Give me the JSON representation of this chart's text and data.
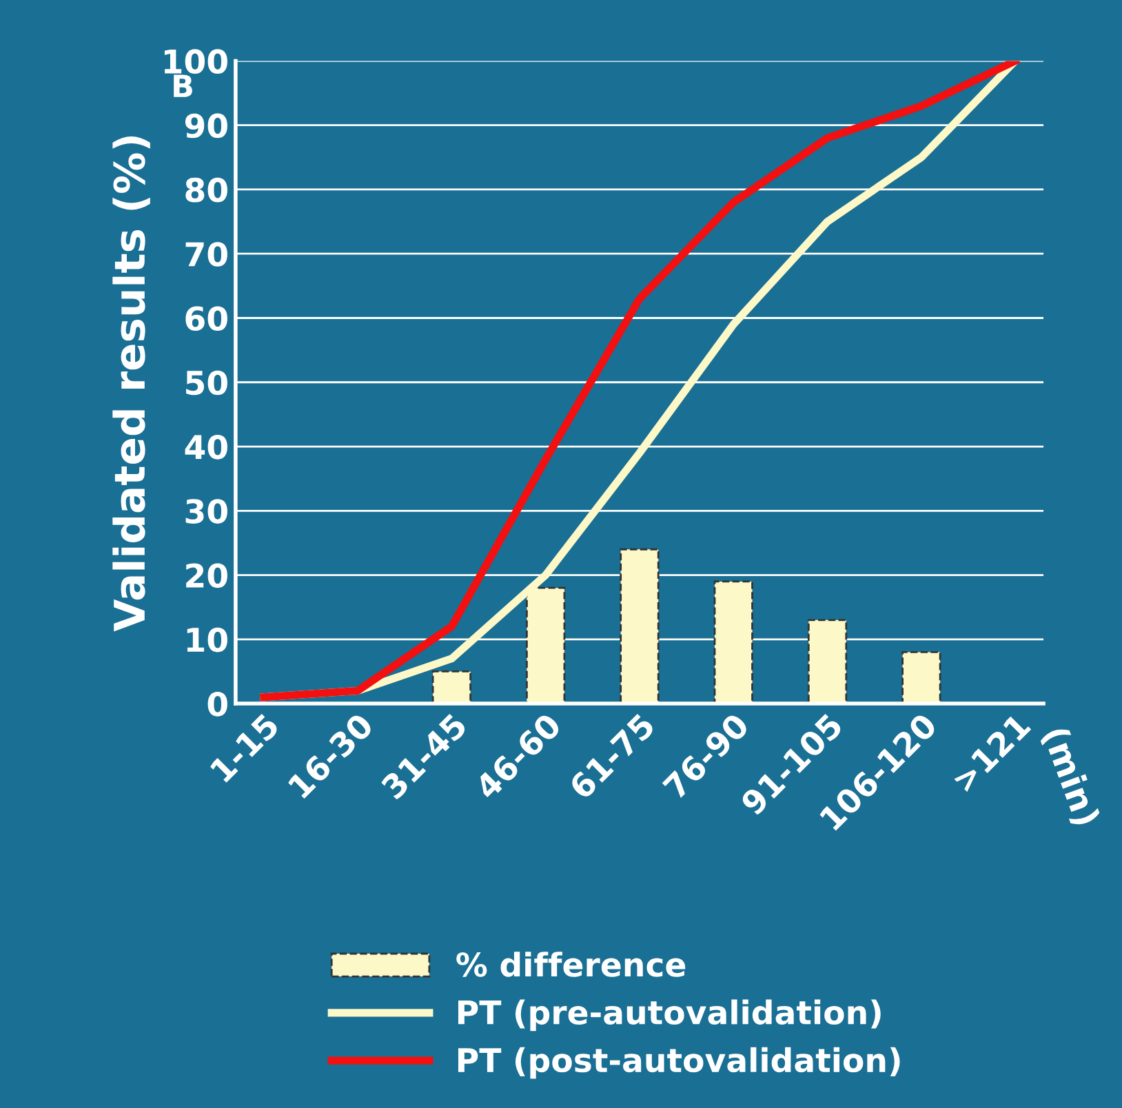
{
  "chart_data": {
    "type": "line",
    "ylabel": "Validated results (%)",
    "annotations": [
      "B",
      "(min)"
    ],
    "categories": [
      "1-15",
      "16-30",
      "31-45",
      "46-60",
      "61-75",
      "76-90",
      "91-105",
      "106-120",
      ">121"
    ],
    "series": [
      {
        "name": "% difference",
        "type": "bar",
        "color": "#fdf8c8",
        "values": [
          null,
          null,
          5,
          18,
          24,
          19,
          13,
          8,
          null
        ]
      },
      {
        "name": "PT (pre-autovalidation)",
        "color": "#fdf8c8",
        "values": [
          1,
          2,
          7,
          20,
          39,
          59,
          75,
          85,
          100
        ]
      },
      {
        "name": "PT (post-autovalidation)",
        "color": "#f21010",
        "values": [
          1,
          2,
          12,
          38,
          63,
          78,
          88,
          93,
          100
        ]
      }
    ],
    "ylim": [
      0,
      100
    ],
    "yticks": [
      0,
      10,
      20,
      30,
      40,
      50,
      60,
      70,
      80,
      90,
      100
    ],
    "grid": "y",
    "legend": "bottom"
  }
}
